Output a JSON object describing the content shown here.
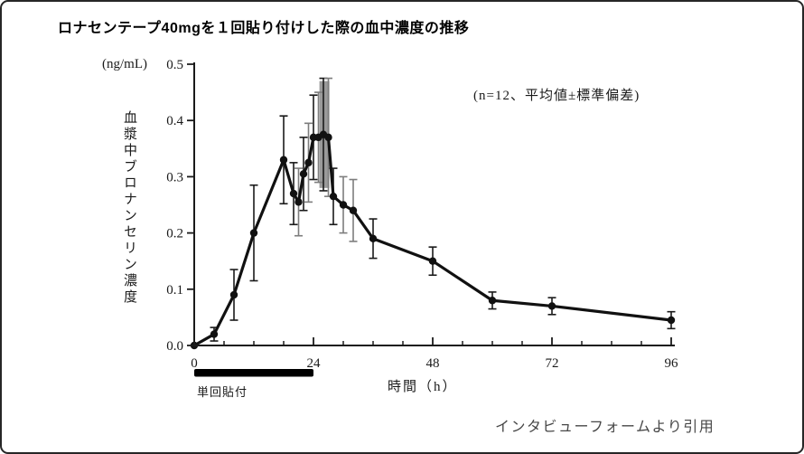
{
  "figure": {
    "title": "ロナセンテープ40mgを１回貼り付けした際の血中濃度の推移",
    "citation": "インタビューフォームより引用"
  },
  "chart_data": {
    "type": "line",
    "title": "ロナセンテープ40mgを１回貼り付けした際の血中濃度の推移",
    "unit_label": "(ng/mL)",
    "ylabel": "血漿中ブロナンセリン濃度",
    "xlabel": "時間（h）",
    "annotation": "(n=12、平均値±標準偏差)",
    "legend": null,
    "grid": false,
    "xlim": [
      0,
      96
    ],
    "ylim": [
      0.0,
      0.5
    ],
    "xticks": [
      0,
      24,
      48,
      72,
      96
    ],
    "xtick_minor_step": 6,
    "yticks": [
      0.0,
      0.1,
      0.2,
      0.3,
      0.4,
      0.5
    ],
    "application_bar": {
      "label": "単回貼付",
      "t_start": 0,
      "t_end": 24
    },
    "series": [
      {
        "name": "血漿中ブロナンセリン濃度（平均値±標準偏差）",
        "marker": "filled-circle",
        "color": "#111111",
        "x": [
          0,
          4,
          8,
          12,
          18,
          20,
          21,
          22,
          23,
          24,
          25,
          26,
          27,
          28,
          30,
          32,
          36,
          48,
          60,
          72,
          96
        ],
        "y": [
          0.0,
          0.02,
          0.09,
          0.2,
          0.33,
          0.27,
          0.255,
          0.305,
          0.325,
          0.37,
          0.37,
          0.375,
          0.37,
          0.265,
          0.25,
          0.24,
          0.19,
          0.15,
          0.08,
          0.07,
          0.045
        ],
        "sd": [
          0.005,
          0.012,
          0.045,
          0.085,
          0.078,
          0.055,
          0.06,
          0.065,
          0.07,
          0.075,
          0.08,
          0.1,
          0.105,
          0.05,
          0.05,
          0.055,
          0.035,
          0.025,
          0.015,
          0.015,
          0.015
        ]
      }
    ],
    "gray_errorbar_times": [
      21,
      23,
      25,
      27,
      30,
      32
    ],
    "gray_band": {
      "t_start": 25.2,
      "t_end": 27.2,
      "c_low": 0.28,
      "c_high": 0.47
    },
    "colors": {
      "line": "#111111",
      "errorbar": "#1a1a1a",
      "errorbar_gray": "#7d7d7d",
      "band": "#9a9a9a",
      "axis": "#1a1a1a"
    }
  }
}
